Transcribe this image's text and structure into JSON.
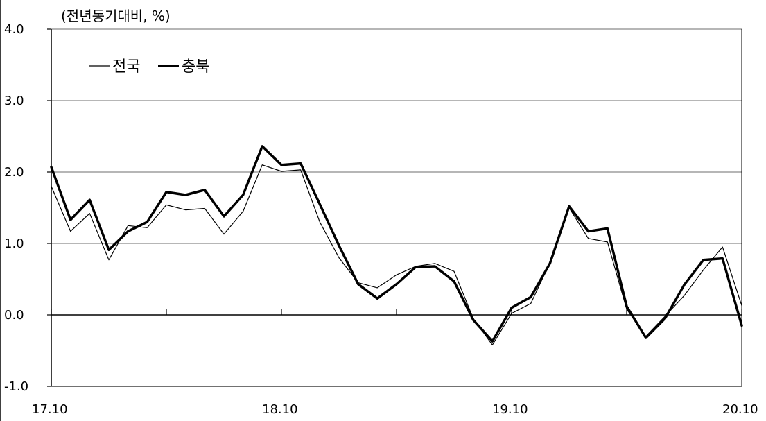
{
  "chart_data": {
    "type": "line",
    "unit_label": "(전년동기대비, %)",
    "ylim": [
      -1.0,
      4.0
    ],
    "yticks": [
      "4.0",
      "3.0",
      "2.0",
      "1.0",
      "0.0",
      "-1.0"
    ],
    "x_tick_labels": [
      "17.10",
      "18.10",
      "19.10",
      "20.10"
    ],
    "grid": true,
    "legend_position": "top-left",
    "series": [
      {
        "name": "전국",
        "color": "#000000",
        "values": [
          1.8,
          1.17,
          1.42,
          0.77,
          1.25,
          1.22,
          1.54,
          1.47,
          1.49,
          1.13,
          1.45,
          2.1,
          2.01,
          2.03,
          1.3,
          0.8,
          0.45,
          0.38,
          0.56,
          0.68,
          0.72,
          0.61,
          -0.05,
          -0.42,
          0.02,
          0.16,
          0.73,
          1.5,
          1.07,
          1.02,
          0.08,
          -0.3,
          -0.02,
          0.27,
          0.63,
          0.95,
          0.13
        ]
      },
      {
        "name": "충북",
        "color": "#000000",
        "values": [
          2.07,
          1.33,
          1.61,
          0.91,
          1.17,
          1.3,
          1.72,
          1.68,
          1.75,
          1.38,
          1.68,
          2.36,
          2.1,
          2.12,
          1.55,
          0.97,
          0.43,
          0.23,
          0.43,
          0.67,
          0.68,
          0.47,
          -0.07,
          -0.37,
          0.1,
          0.25,
          0.72,
          1.52,
          1.17,
          1.21,
          0.12,
          -0.32,
          -0.05,
          0.42,
          0.77,
          0.79,
          -0.15
        ]
      }
    ]
  }
}
